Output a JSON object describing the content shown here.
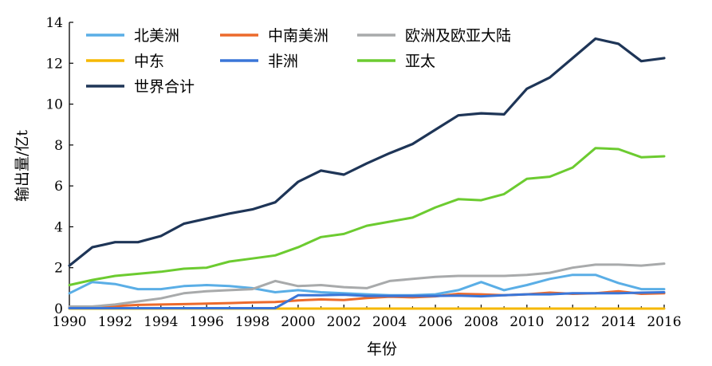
{
  "chart_data": {
    "type": "line",
    "xlabel": "年份",
    "ylabel": "输出量/亿t",
    "xlim": [
      1990,
      2016
    ],
    "ylim": [
      0,
      14
    ],
    "x_ticks": [
      1990,
      1992,
      1994,
      1996,
      1998,
      2000,
      2002,
      2004,
      2006,
      2008,
      2010,
      2012,
      2014,
      2016
    ],
    "y_ticks": [
      0,
      2,
      4,
      6,
      8,
      10,
      12,
      14
    ],
    "grid": false,
    "legend_position": "top-left",
    "x": [
      1990,
      1991,
      1992,
      1993,
      1994,
      1995,
      1996,
      1997,
      1998,
      1999,
      2000,
      2001,
      2002,
      2003,
      2004,
      2005,
      2006,
      2007,
      2008,
      2009,
      2010,
      2011,
      2012,
      2013,
      2014,
      2015,
      2016
    ],
    "series": [
      {
        "name": "北美洲",
        "color": "#5aaee6",
        "values": [
          0.75,
          1.3,
          1.2,
          0.95,
          0.95,
          1.1,
          1.15,
          1.1,
          1.0,
          0.8,
          0.9,
          0.8,
          0.75,
          0.7,
          0.65,
          0.65,
          0.7,
          0.9,
          1.3,
          0.9,
          1.15,
          1.45,
          1.65,
          1.65,
          1.25,
          0.95,
          0.95
        ]
      },
      {
        "name": "中南美洲",
        "color": "#ec6a2c",
        "values": [
          0.05,
          0.08,
          0.12,
          0.18,
          0.2,
          0.22,
          0.24,
          0.27,
          0.3,
          0.32,
          0.4,
          0.45,
          0.42,
          0.52,
          0.58,
          0.55,
          0.6,
          0.72,
          0.7,
          0.65,
          0.7,
          0.78,
          0.72,
          0.75,
          0.85,
          0.72,
          0.75
        ]
      },
      {
        "name": "欧洲及欧亚大陆",
        "color": "#a8aaab",
        "values": [
          0.1,
          0.1,
          0.2,
          0.35,
          0.5,
          0.75,
          0.85,
          0.9,
          0.95,
          1.35,
          1.1,
          1.15,
          1.05,
          1.0,
          1.35,
          1.45,
          1.55,
          1.6,
          1.6,
          1.6,
          1.65,
          1.75,
          2.0,
          2.15,
          2.15,
          2.1,
          2.2
        ]
      },
      {
        "name": "中东",
        "color": "#f5b800",
        "values": [
          0,
          0,
          0,
          0,
          0,
          0,
          0,
          0,
          0,
          0,
          0,
          0,
          0,
          0,
          0,
          0,
          0,
          0,
          0,
          0,
          0,
          0,
          0,
          0,
          0,
          0,
          0
        ]
      },
      {
        "name": "非洲",
        "color": "#3a76d8",
        "values": [
          0.02,
          0.02,
          0.02,
          0.02,
          0.02,
          0.02,
          0.02,
          0.02,
          0.02,
          0.02,
          0.65,
          0.65,
          0.68,
          0.62,
          0.62,
          0.62,
          0.62,
          0.63,
          0.6,
          0.65,
          0.7,
          0.7,
          0.75,
          0.75,
          0.75,
          0.78,
          0.8
        ]
      },
      {
        "name": "亚太",
        "color": "#6ccb30",
        "values": [
          1.15,
          1.4,
          1.6,
          1.7,
          1.8,
          1.95,
          2.0,
          2.3,
          2.45,
          2.6,
          3.0,
          3.5,
          3.65,
          4.05,
          4.25,
          4.45,
          4.95,
          5.35,
          5.3,
          5.6,
          6.35,
          6.45,
          6.9,
          7.85,
          7.8,
          7.4,
          7.45
        ]
      },
      {
        "name": "世界合计",
        "color": "#1e3557",
        "values": [
          2.1,
          3.0,
          3.25,
          3.25,
          3.55,
          4.15,
          4.4,
          4.65,
          4.85,
          5.2,
          6.2,
          6.75,
          6.55,
          7.1,
          7.6,
          8.05,
          8.75,
          9.45,
          9.55,
          9.5,
          10.75,
          11.3,
          12.25,
          13.2,
          12.95,
          12.1,
          12.25
        ]
      }
    ]
  }
}
